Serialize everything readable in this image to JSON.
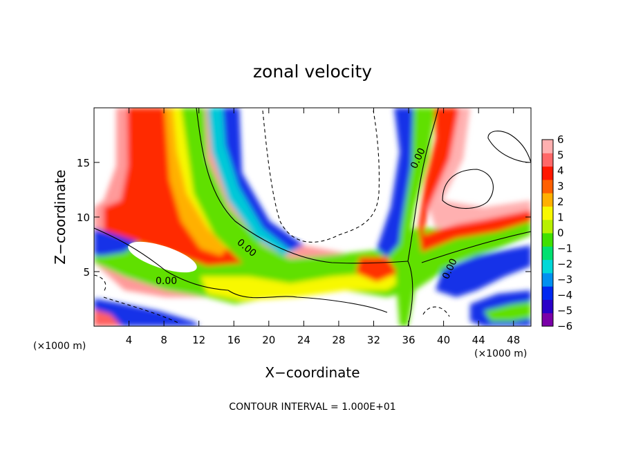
{
  "chart_data": {
    "type": "heatmap",
    "title": "zonal velocity",
    "xlabel": "X−coordinate",
    "ylabel": "Z−coordinate",
    "x_unit_left": "(×1000 m)",
    "x_unit_right": "(×1000 m)",
    "xlim": [
      0,
      50
    ],
    "ylim": [
      0,
      20
    ],
    "x_ticks": [
      {
        "value": 4,
        "label": "4"
      },
      {
        "value": 8,
        "label": "8"
      },
      {
        "value": 12,
        "label": "12"
      },
      {
        "value": 16,
        "label": "16"
      },
      {
        "value": 20,
        "label": "20"
      },
      {
        "value": 24,
        "label": "24"
      },
      {
        "value": 28,
        "label": "28"
      },
      {
        "value": 32,
        "label": "32"
      },
      {
        "value": 36,
        "label": "36"
      },
      {
        "value": 40,
        "label": "40"
      },
      {
        "value": 44,
        "label": "44"
      },
      {
        "value": 48,
        "label": "48"
      }
    ],
    "y_ticks": [
      {
        "value": 5,
        "label": "5"
      },
      {
        "value": 10,
        "label": "10"
      },
      {
        "value": 15,
        "label": "15"
      }
    ],
    "footer": "CONTOUR INTERVAL = 1.000E+01",
    "contour_label": "0.00",
    "colorbar": {
      "range": [
        -6,
        6
      ],
      "labels": [
        {
          "value": 6,
          "label": "6"
        },
        {
          "value": 5,
          "label": "5"
        },
        {
          "value": 4,
          "label": "4"
        },
        {
          "value": 3,
          "label": "3"
        },
        {
          "value": 2,
          "label": "2"
        },
        {
          "value": 1,
          "label": "1"
        },
        {
          "value": 0,
          "label": "0"
        },
        {
          "value": -1,
          "label": "−1"
        },
        {
          "value": -2,
          "label": "−2"
        },
        {
          "value": -3,
          "label": "−3"
        },
        {
          "value": -4,
          "label": "−4"
        },
        {
          "value": -5,
          "label": "−5"
        },
        {
          "value": -6,
          "label": "−6"
        }
      ],
      "colors": [
        "#7a00a8",
        "#2a00c8",
        "#0028f0",
        "#0090f0",
        "#00d8d8",
        "#00e070",
        "#40e000",
        "#b8f000",
        "#f8f800",
        "#ffb000",
        "#ff6000",
        "#ff1800",
        "#ff6868",
        "#ffb0b0"
      ]
    }
  }
}
